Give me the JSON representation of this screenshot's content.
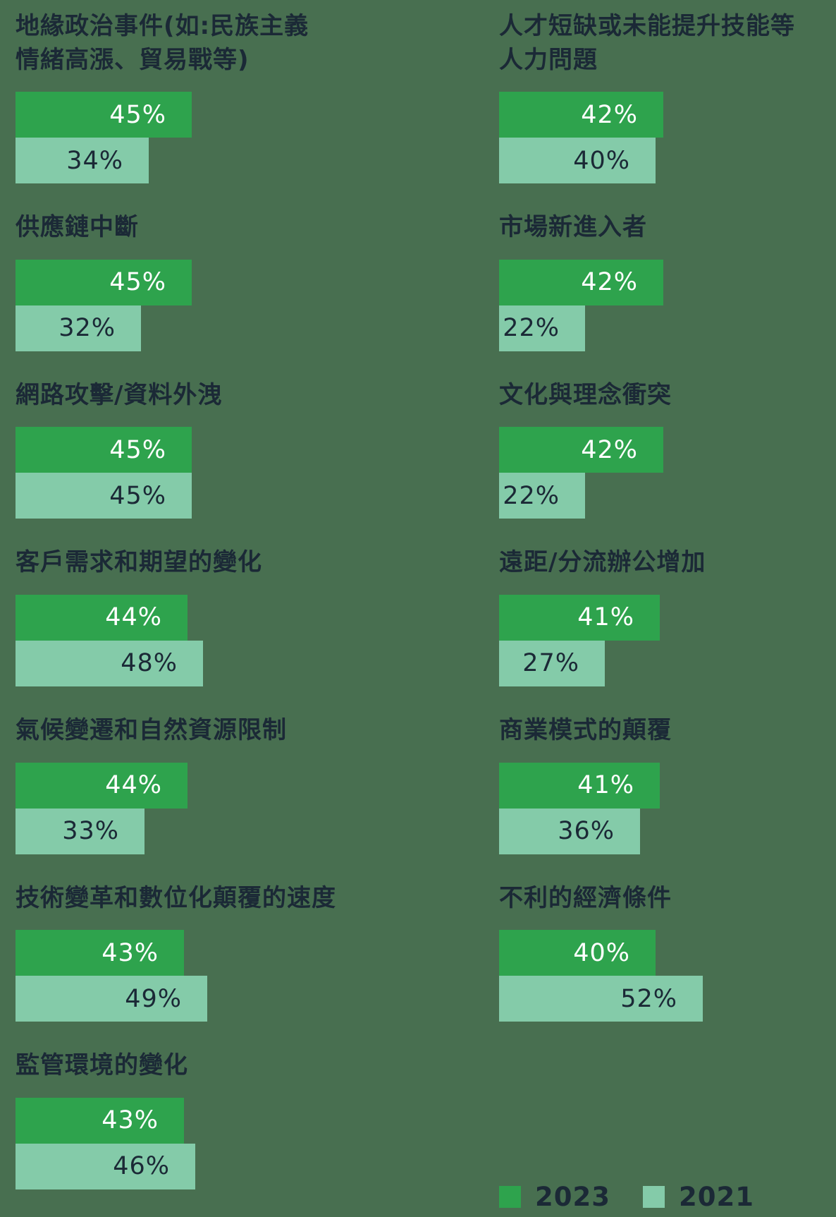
{
  "colors": {
    "background": "#486F50",
    "series_2023": "#2EA34D",
    "series_2021": "#84CBA9",
    "title_text": "#1B2936",
    "label_on_2023": "#FFFFFF",
    "label_on_2021": "#1B2936"
  },
  "legend": {
    "items": [
      {
        "label": "2023",
        "color": "#2EA34D"
      },
      {
        "label": "2021",
        "color": "#84CBA9"
      }
    ],
    "position": "bottom-right"
  },
  "chart_data": {
    "type": "bar",
    "orientation": "horizontal",
    "unit": "%",
    "series": [
      "2023",
      "2021"
    ],
    "xlim": [
      0,
      100
    ],
    "grid": false,
    "value_label_position": "inside-right",
    "items": [
      {
        "column": "left",
        "label": "地緣政治事件(如:民族主義\n情緒高漲、貿易戰等)",
        "values": {
          "2023": 45,
          "2021": 34
        }
      },
      {
        "column": "left",
        "label": "供應鏈中斷",
        "values": {
          "2023": 45,
          "2021": 32
        }
      },
      {
        "column": "left",
        "label": "網路攻擊/資料外洩",
        "values": {
          "2023": 45,
          "2021": 45
        }
      },
      {
        "column": "left",
        "label": "客戶需求和期望的變化",
        "values": {
          "2023": 44,
          "2021": 48
        }
      },
      {
        "column": "left",
        "label": "氣候變遷和自然資源限制",
        "values": {
          "2023": 44,
          "2021": 33
        }
      },
      {
        "column": "left",
        "label": "技術變革和數位化顛覆的速度",
        "values": {
          "2023": 43,
          "2021": 49
        }
      },
      {
        "column": "left",
        "label": "監管環境的變化",
        "values": {
          "2023": 43,
          "2021": 46
        }
      },
      {
        "column": "right",
        "label": "人才短缺或未能提升技能等\n人力問題",
        "values": {
          "2023": 42,
          "2021": 40
        }
      },
      {
        "column": "right",
        "label": "市場新進入者",
        "values": {
          "2023": 42,
          "2021": 22
        }
      },
      {
        "column": "right",
        "label": "文化與理念衝突",
        "values": {
          "2023": 42,
          "2021": 22
        }
      },
      {
        "column": "right",
        "label": "遠距/分流辦公增加",
        "values": {
          "2023": 41,
          "2021": 27
        }
      },
      {
        "column": "right",
        "label": "商業模式的顛覆",
        "values": {
          "2023": 41,
          "2021": 36
        }
      },
      {
        "column": "right",
        "label": "不利的經濟條件",
        "values": {
          "2023": 40,
          "2021": 52
        }
      }
    ]
  }
}
